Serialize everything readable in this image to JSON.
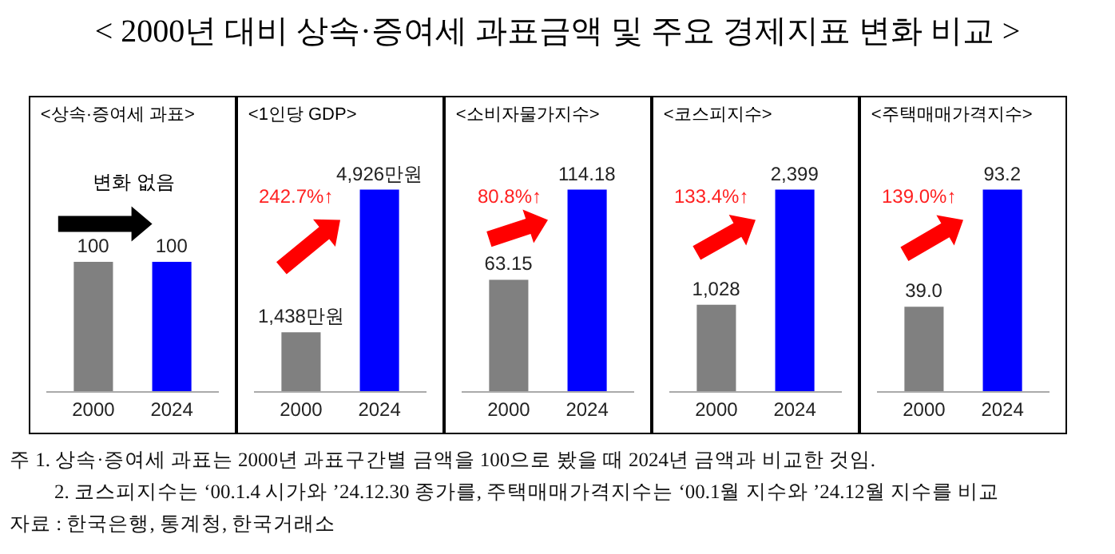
{
  "chart_data": [
    {
      "type": "other",
      "title": "< 2000년 대비 상속·증여세 과표금액 및 주요 경제지표 변화 비교 >",
      "annotations": [
        "주 1. 상속·증여세 과표는 2000년 과표구간별 금액을 100으로 봤을 때 2024년 금액과 비교한 것임.",
        "2. 코스피지수는 ‘00.1.4 시가와 ’24.12.30 종가를, 주택매매가격지수는 ‘00.1월 지수와 ’24.12월 지수를 비교",
        "자료 : 한국은행, 통계청, 한국거래소"
      ]
    },
    {
      "type": "bar",
      "title": "<상속·증여세 과표>",
      "categories": [
        "2000",
        "2024"
      ],
      "values": [
        100,
        100
      ],
      "colors": [
        "#808080",
        "#0000ff"
      ],
      "value_labels": [
        "100",
        "100"
      ],
      "annotations": [
        "변화 없음"
      ]
    },
    {
      "type": "bar",
      "title": "<1인당 GDP>",
      "categories": [
        "2000",
        "2024"
      ],
      "values": [
        1438,
        4926
      ],
      "colors": [
        "#808080",
        "#0000ff"
      ],
      "value_labels": [
        "1,438만원",
        "4,926만원"
      ],
      "annotations": [
        "242.7%↑"
      ]
    },
    {
      "type": "bar",
      "title": "<소비자물가지수>",
      "categories": [
        "2000",
        "2024"
      ],
      "values": [
        63.15,
        114.18
      ],
      "colors": [
        "#808080",
        "#0000ff"
      ],
      "value_labels": [
        "63.15",
        "114.18"
      ],
      "annotations": [
        "80.8%↑"
      ]
    },
    {
      "type": "bar",
      "title": "<코스피지수>",
      "categories": [
        "2000",
        "2024"
      ],
      "values": [
        1028,
        2399
      ],
      "colors": [
        "#808080",
        "#0000ff"
      ],
      "value_labels": [
        "1,028",
        "2,399"
      ],
      "annotations": [
        "133.4%↑"
      ]
    },
    {
      "type": "bar",
      "title": "<주택매매가격지수>",
      "categories": [
        "2000",
        "2024"
      ],
      "values": [
        39,
        93.2
      ],
      "colors": [
        "#808080",
        "#0000ff"
      ],
      "value_labels": [
        "39.0",
        "93.2"
      ],
      "annotations": [
        "139.0%↑"
      ]
    }
  ]
}
